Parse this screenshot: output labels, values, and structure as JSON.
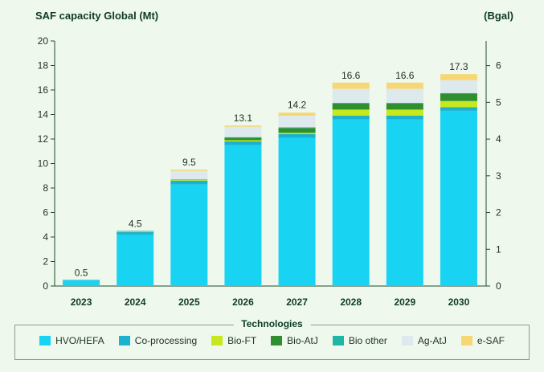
{
  "chart_data": {
    "type": "bar",
    "stacked": true,
    "title": "SAF capacity Global (Mt)",
    "right_axis_unit": "(Bgal)",
    "categories": [
      "2023",
      "2024",
      "2025",
      "2026",
      "2027",
      "2028",
      "2029",
      "2030"
    ],
    "totals": [
      "0.5",
      "4.5",
      "9.5",
      "13.1",
      "14.2",
      "16.6",
      "16.6",
      "17.3"
    ],
    "left_axis": {
      "ylim": [
        0,
        20
      ],
      "ticks": [
        "0",
        "2",
        "4",
        "6",
        "8",
        "10",
        "12",
        "14",
        "16",
        "18",
        "20"
      ]
    },
    "right_axis": {
      "ylim": [
        0,
        6.67
      ],
      "ticks": [
        "0",
        "1",
        "2",
        "3",
        "4",
        "5",
        "6"
      ]
    },
    "legend_title": "Technologies",
    "series": [
      {
        "name": "HVO/HEFA",
        "color": "#18d3f2",
        "values": [
          0.45,
          4.2,
          8.3,
          11.5,
          12.1,
          13.6,
          13.6,
          14.3
        ]
      },
      {
        "name": "Co-processing",
        "color": "#1ab2cf",
        "values": [
          0.05,
          0.2,
          0.3,
          0.3,
          0.3,
          0.3,
          0.3,
          0.3
        ]
      },
      {
        "name": "Bio-FT",
        "color": "#c8e81e",
        "values": [
          0,
          0.05,
          0.05,
          0.1,
          0.1,
          0.5,
          0.5,
          0.5
        ]
      },
      {
        "name": "Bio-AtJ",
        "color": "#2f8f2f",
        "values": [
          0,
          0,
          0,
          0.2,
          0.4,
          0.5,
          0.5,
          0.6
        ]
      },
      {
        "name": "Bio other",
        "color": "#1fb6a6",
        "values": [
          0,
          0.05,
          0.05,
          0.05,
          0.05,
          0.05,
          0.05,
          0.05
        ]
      },
      {
        "name": "Ag-AtJ",
        "color": "#dde9ec",
        "values": [
          0,
          0,
          0.7,
          0.85,
          0.95,
          1.15,
          1.15,
          1.05
        ]
      },
      {
        "name": "e-SAF",
        "color": "#f6d774",
        "values": [
          0,
          0,
          0.1,
          0.1,
          0.25,
          0.5,
          0.5,
          0.5
        ]
      }
    ]
  }
}
